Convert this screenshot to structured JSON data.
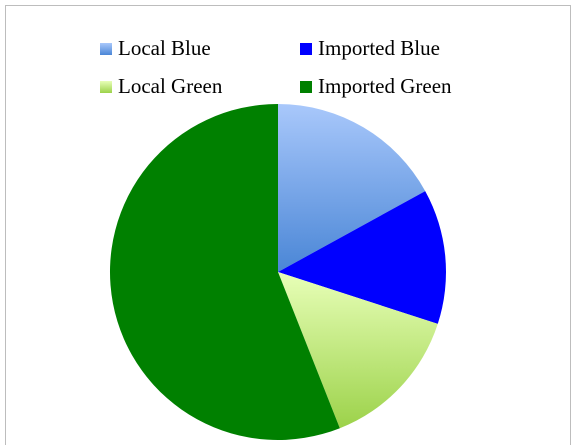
{
  "chart_data": {
    "type": "pie",
    "title": "",
    "start_angle_deg": 0,
    "direction": "clockwise",
    "legend_position": "top",
    "categories": [
      "Local Blue",
      "Imported Blue",
      "Local Green",
      "Imported Green"
    ],
    "values": [
      17,
      13,
      14,
      56
    ],
    "colors": [
      "#6ea0e8",
      "#0000ff",
      "#c8ee88",
      "#008000"
    ],
    "gradient": [
      [
        "#a9c8fb",
        "#4a86d6"
      ],
      [
        "#0000ff",
        "#0000ff"
      ],
      [
        "#e8ffb8",
        "#9cd24a"
      ],
      [
        "#008000",
        "#008000"
      ]
    ]
  }
}
